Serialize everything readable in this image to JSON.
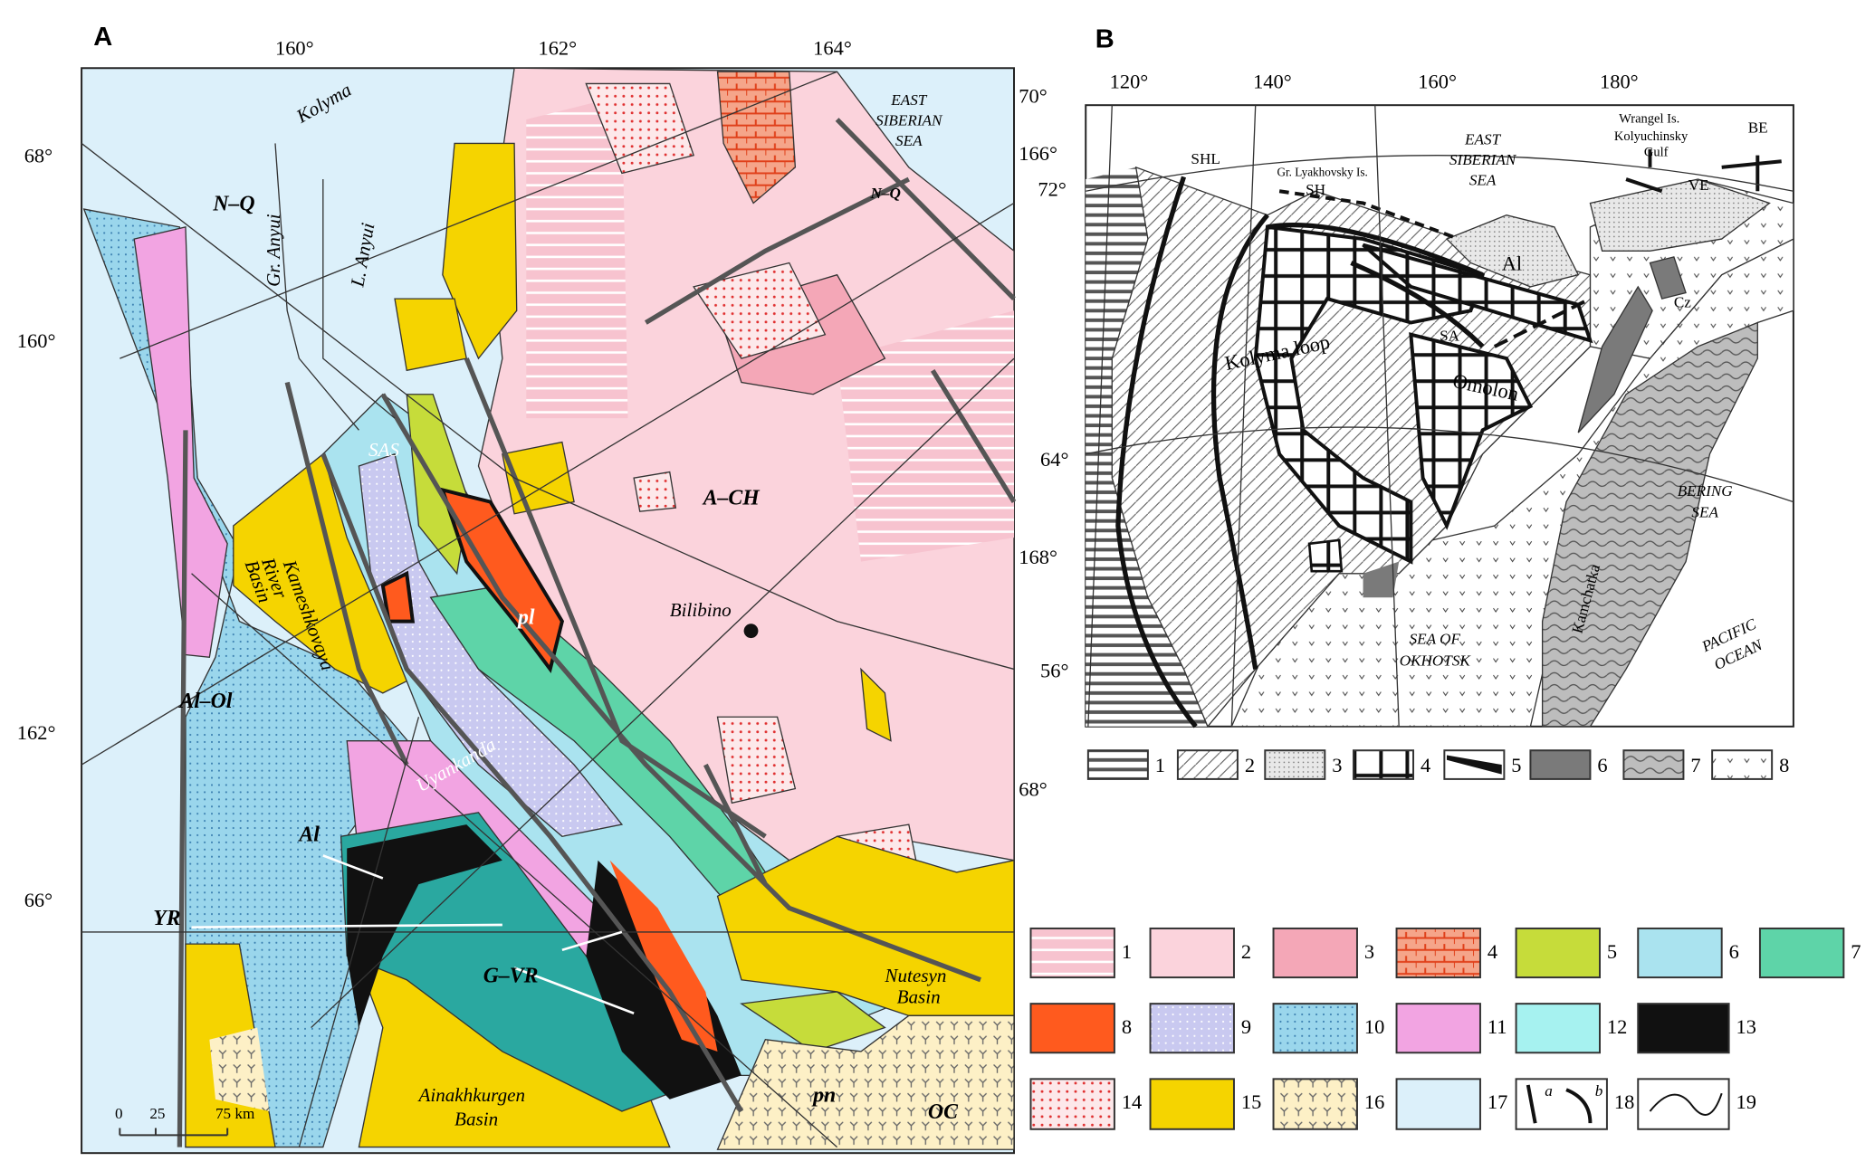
{
  "panel_a": {
    "label": "A",
    "top_ticks": [
      "160°",
      "162°",
      "164°"
    ],
    "left_ticks": [
      "68°",
      "160°",
      "162°",
      "66°"
    ],
    "right_ticks": [
      "70°",
      "166°",
      "168°",
      "68°"
    ],
    "places": {
      "kolyma": "Kolyma",
      "nq_west": "N–Q",
      "gr_anyui": "Gr. Anyui",
      "l_anyui": "L. Anyui",
      "east_siberian_sea": [
        "EAST",
        "SIBERIAN",
        "SEA"
      ],
      "nq_east": "N–Q",
      "sas": "SAS",
      "kameshkovaya": [
        "Kameshkovaya",
        "River",
        "Basin"
      ],
      "ach": "A–CH",
      "bilibino": "Bilibino",
      "pl": "pl",
      "al_ol": "Al–Ol",
      "uyankanda": "Uyankanda",
      "al": "Al",
      "yr": "YR",
      "gvr": "G–VR",
      "nutesyn": [
        "Nutesyn",
        "Basin"
      ],
      "ainakhkurgen": [
        "Ainakhkurgen",
        "Basin"
      ],
      "pn": "pn",
      "oc": "OC"
    },
    "scale_bar": [
      "0",
      "25",
      "75 km"
    ]
  },
  "panel_b": {
    "label": "B",
    "top_ticks": [
      "120°",
      "140°",
      "160°",
      "180°"
    ],
    "left_ticks": [
      "72°",
      "64°",
      "56°"
    ],
    "places": {
      "shl": "SHL",
      "lyakhovsky": "Gr. Lyakhovsky Is.",
      "sh": "SH",
      "east_siberian_sea": [
        "EAST",
        "SIBERIAN",
        "SEA"
      ],
      "wrangel": "Wrangel Is.",
      "kolyuchinsky": [
        "Kolyuchinsky",
        "Gulf"
      ],
      "be": "BE",
      "ve": "VE",
      "al": "Al",
      "sa": "SA",
      "kolyma_loop": "Kolyma loop",
      "omolon": "Omolon",
      "cz": "Cz",
      "bering_sea": [
        "BERING",
        "SEA"
      ],
      "pacific_ocean": [
        "PACIFIC",
        "OCEAN"
      ],
      "sea_of_okhotsk": [
        "SEA OF",
        "OKHOTSK"
      ],
      "kamchatka": "Kamchatka"
    }
  },
  "legend_a": {
    "items": [
      "1",
      "2",
      "3",
      "4",
      "5",
      "6",
      "7",
      "8",
      "9",
      "10",
      "11",
      "12",
      "13",
      "14",
      "15",
      "16",
      "17",
      "18",
      "19"
    ],
    "item_18_parts": [
      "a",
      "b"
    ]
  },
  "legend_b": {
    "items": [
      "1",
      "2",
      "3",
      "4",
      "5",
      "6",
      "7",
      "8"
    ]
  }
}
